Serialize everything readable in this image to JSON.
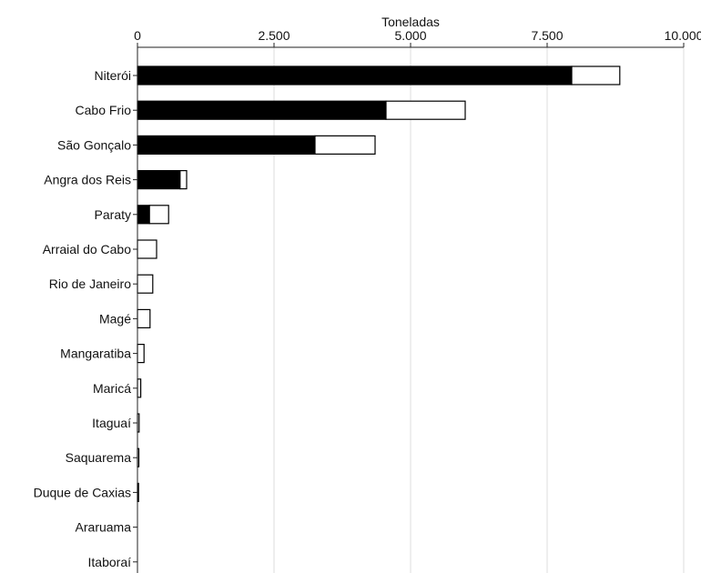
{
  "chart_data": {
    "type": "bar",
    "orientation": "horizontal",
    "stacked": true,
    "xlabel": "Toneladas",
    "xlim": [
      0,
      10000
    ],
    "xticks": [
      0,
      2500,
      5000,
      7500,
      10000
    ],
    "xtick_labels": [
      "0",
      "2.500",
      "5.000",
      "7.500",
      "10.000"
    ],
    "x_axis_position": "top",
    "grid": "vertical",
    "categories": [
      "Niterói",
      "Cabo Frio",
      "São Gonçalo",
      "Angra dos Reis",
      "Paraty",
      "Arraial do Cabo",
      "Rio de Janeiro",
      "Magé",
      "Mangaratiba",
      "Maricá",
      "Itaguaí",
      "Saquarema",
      "Duque de Caxias",
      "Araruama",
      "Itaboraí"
    ],
    "series": [
      {
        "values": [
          7950,
          4550,
          3250,
          780,
          220,
          0,
          0,
          0,
          0,
          0,
          0,
          0,
          0,
          0,
          0
        ],
        "color": "#000000"
      },
      {
        "values": [
          880,
          1450,
          1100,
          120,
          350,
          350,
          280,
          230,
          120,
          60,
          30,
          25,
          20,
          0,
          0
        ],
        "color": "#ffffff"
      }
    ]
  }
}
